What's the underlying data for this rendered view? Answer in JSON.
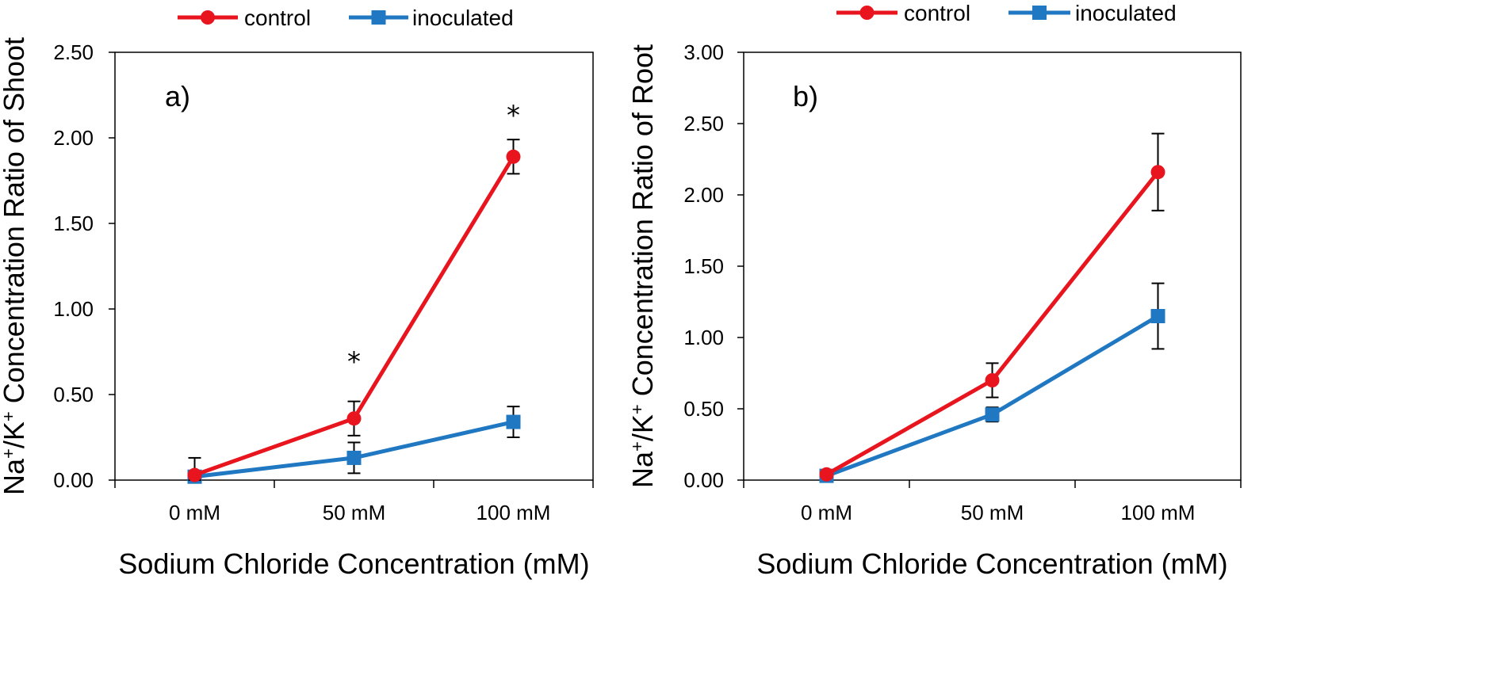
{
  "chart_data": [
    {
      "type": "line",
      "panel_label": "a)",
      "categories": [
        "0 mM",
        "50 mM",
        "100 mM"
      ],
      "xlabel": "Sodium Chloride Concentration (mM)",
      "ylabel_parts": [
        "Na",
        "+",
        "/K",
        "+",
        " Concentration Ratio of Shoot"
      ],
      "ylim": [
        0,
        2.5
      ],
      "yticks": [
        "0.00",
        "0.50",
        "1.00",
        "1.50",
        "2.00",
        "2.50"
      ],
      "legend_position": "top",
      "series": [
        {
          "name": "control",
          "color": "#e8141e",
          "marker": "circle",
          "values": [
            0.03,
            0.36,
            1.89
          ],
          "errors": [
            0.1,
            0.1,
            0.1
          ]
        },
        {
          "name": "inoculated",
          "color": "#1f78c1",
          "marker": "square",
          "values": [
            0.02,
            0.13,
            0.34
          ],
          "errors": [
            0.01,
            0.09,
            0.09
          ]
        }
      ],
      "annotations": [
        {
          "text": "*",
          "category": "50 mM",
          "y": 0.74
        },
        {
          "text": "*",
          "category": "100 mM",
          "y": 2.18
        }
      ]
    },
    {
      "type": "line",
      "panel_label": "b)",
      "categories": [
        "0 mM",
        "50 mM",
        "100 mM"
      ],
      "xlabel": "Sodium Chloride Concentration (mM)",
      "ylabel_parts": [
        "Na",
        "+",
        "/K",
        "+",
        " Concentration Ratio of Root"
      ],
      "ylim": [
        0,
        3.0
      ],
      "yticks": [
        "0.00",
        "0.50",
        "1.00",
        "1.50",
        "2.00",
        "2.50",
        "3.00"
      ],
      "legend_position": "top",
      "series": [
        {
          "name": "control",
          "color": "#e8141e",
          "marker": "circle",
          "values": [
            0.04,
            0.7,
            2.16
          ],
          "errors": [
            0.01,
            0.12,
            0.27
          ]
        },
        {
          "name": "inoculated",
          "color": "#1f78c1",
          "marker": "square",
          "values": [
            0.03,
            0.46,
            1.15
          ],
          "errors": [
            0.01,
            0.05,
            0.23
          ]
        }
      ],
      "annotations": []
    }
  ]
}
